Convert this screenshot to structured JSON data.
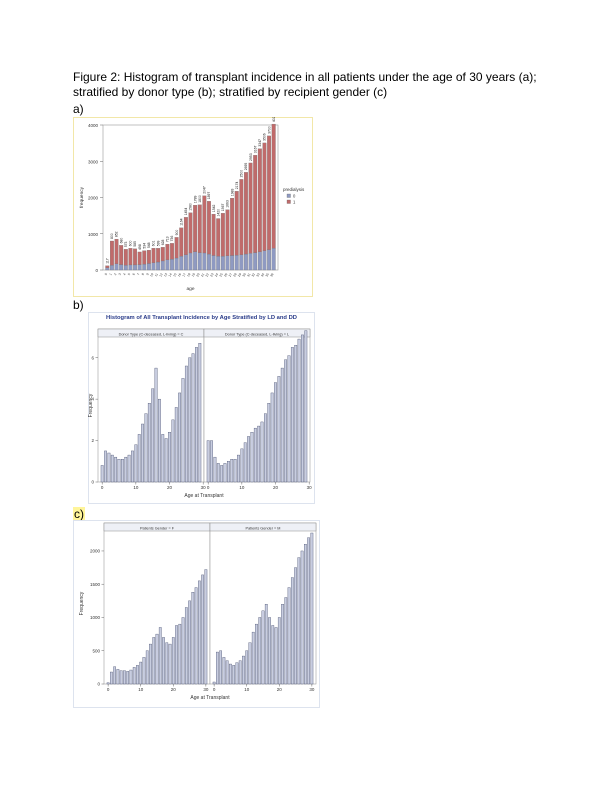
{
  "caption": {
    "line1": "Figure 2: Histogram of transplant incidence in all patients under the age of 30 years (a);",
    "line2": "stratified by donor type (b); stratified by recipient gender (c)"
  },
  "panels": {
    "a": "a)",
    "b": "b)",
    "c": "c)"
  },
  "chart_data": [
    {
      "type": "bar",
      "stacked": true,
      "xlabel": "age",
      "ylabel": "frequency",
      "ylim": [
        0,
        4000
      ],
      "yticks": [
        0,
        1000,
        2000,
        3000,
        4000
      ],
      "legend": {
        "title": "predialysis",
        "placement": "right",
        "entries": [
          "0",
          "1"
        ]
      },
      "x": [
        0,
        1,
        2,
        3,
        4,
        5,
        6,
        7,
        8,
        9,
        10,
        11,
        12,
        13,
        14,
        15,
        16,
        17,
        18,
        19,
        20,
        21,
        22,
        23,
        24,
        25,
        26,
        27,
        28,
        29,
        30,
        31,
        32,
        33,
        34,
        35,
        36
      ],
      "totals": [
        117,
        800,
        852,
        680,
        573,
        600,
        585,
        498,
        534,
        548,
        601,
        599,
        628,
        713,
        736,
        900,
        1164,
        1454,
        1580,
        1789,
        1800,
        2047,
        1897,
        1542,
        1420,
        1567,
        1663,
        1983,
        2174,
        2500,
        2695,
        2953,
        3167,
        3347,
        3506,
        3700,
        4025
      ],
      "series": [
        {
          "name": "0",
          "color": "#8f9ac2",
          "values": [
            60,
            130,
            170,
            150,
            130,
            140,
            140,
            150,
            160,
            180,
            200,
            220,
            250,
            280,
            300,
            330,
            380,
            420,
            470,
            500,
            480,
            470,
            440,
            400,
            380,
            380,
            390,
            400,
            410,
            420,
            440,
            460,
            480,
            500,
            530,
            560,
            600
          ]
        },
        {
          "name": "1",
          "color": "#c06b6b",
          "values": [
            57,
            670,
            682,
            530,
            443,
            460,
            445,
            348,
            374,
            368,
            401,
            379,
            378,
            433,
            436,
            570,
            784,
            1034,
            1110,
            1289,
            1320,
            1577,
            1457,
            1142,
            1040,
            1187,
            1273,
            1583,
            1764,
            2080,
            2255,
            2493,
            2687,
            2847,
            2976,
            3140,
            3425
          ]
        }
      ]
    },
    {
      "type": "bar",
      "title": "Histogram of All Transplant Incidence by Age Stratified by LD and DD",
      "xlabel": "Age at Transplant",
      "ylabel": "Frequency",
      "ylim": [
        0,
        7
      ],
      "yticks": [
        0,
        2,
        4,
        6
      ],
      "xticks": [
        0,
        10,
        20,
        30
      ],
      "facets": [
        {
          "label": "Donor Type (C-deceased, L-living) = C",
          "values": [
            0.8,
            1.5,
            1.4,
            1.3,
            1.2,
            1.1,
            1.1,
            1.2,
            1.3,
            1.5,
            1.8,
            2.3,
            2.8,
            3.3,
            3.8,
            4.5,
            5.5,
            4.0,
            2.3,
            2.1,
            2.4,
            3.0,
            3.6,
            4.3,
            5.0,
            5.6,
            6.0,
            6.2,
            6.5,
            6.7
          ]
        },
        {
          "label": "Donor Type (C-deceased, L-living) = L",
          "values": [
            2.0,
            2.0,
            1.2,
            0.9,
            0.8,
            0.9,
            1.0,
            1.1,
            1.1,
            1.3,
            1.6,
            1.9,
            2.2,
            2.4,
            2.6,
            2.7,
            2.9,
            3.3,
            3.8,
            4.3,
            4.8,
            5.1,
            5.5,
            5.9,
            6.1,
            6.5,
            6.6,
            6.9,
            7.1,
            7.3
          ]
        }
      ]
    },
    {
      "type": "bar",
      "xlabel": "Age at Transplant",
      "ylabel": "Frequency",
      "ylim": [
        0,
        2300
      ],
      "yticks": [
        0,
        500,
        1000,
        1500,
        2000
      ],
      "xticks": [
        0,
        10,
        20,
        30
      ],
      "facets": [
        {
          "label": "Patients Gender = F",
          "values": [
            20,
            180,
            260,
            220,
            200,
            200,
            190,
            210,
            250,
            280,
            330,
            400,
            500,
            600,
            700,
            750,
            850,
            700,
            620,
            600,
            700,
            880,
            900,
            1000,
            1150,
            1250,
            1380,
            1450,
            1550,
            1640,
            1720
          ]
        },
        {
          "label": "Patients Gender = M",
          "values": [
            30,
            480,
            500,
            400,
            350,
            300,
            280,
            320,
            350,
            420,
            500,
            620,
            780,
            900,
            1000,
            1100,
            1200,
            1000,
            880,
            850,
            1000,
            1200,
            1300,
            1450,
            1600,
            1750,
            1900,
            2000,
            2100,
            2200,
            2270
          ]
        }
      ]
    }
  ]
}
